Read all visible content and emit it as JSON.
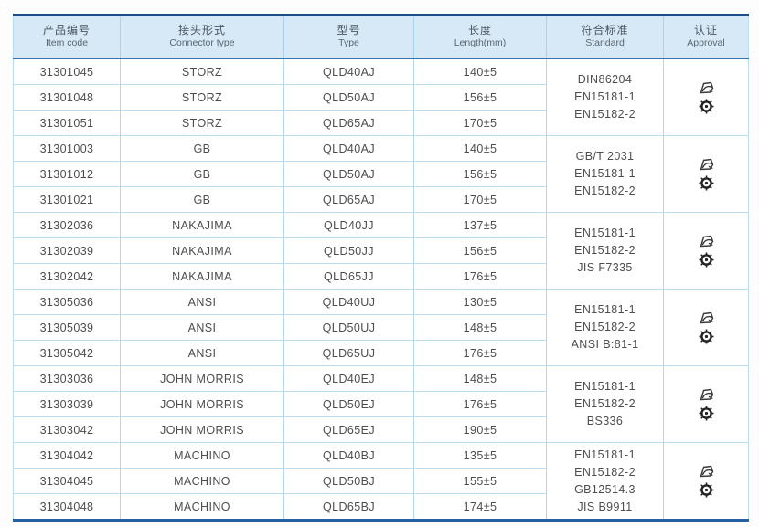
{
  "table": {
    "header": {
      "columns": [
        {
          "zh": "产品编号",
          "en": "Item code"
        },
        {
          "zh": "接头形式",
          "en": "Connector type"
        },
        {
          "zh": "型号",
          "en": "Type"
        },
        {
          "zh": "长度",
          "en": "Length(mm)"
        },
        {
          "zh": "符合标准",
          "en": "Standard"
        },
        {
          "zh": "认证",
          "en": "Approval"
        }
      ]
    },
    "groups": [
      {
        "rows": [
          {
            "item_code": "31301045",
            "connector_type": "STORZ",
            "type": "QLD40AJ",
            "length": "140±5"
          },
          {
            "item_code": "31301048",
            "connector_type": "STORZ",
            "type": "QLD50AJ",
            "length": "156±5"
          },
          {
            "item_code": "31301051",
            "connector_type": "STORZ",
            "type": "QLD65AJ",
            "length": "170±5"
          }
        ],
        "standards": [
          "DIN86204",
          "EN15181-1",
          "EN15182-2"
        ],
        "approval_icons": [
          "certificate-logo-icon",
          "wheelmark-icon"
        ]
      },
      {
        "rows": [
          {
            "item_code": "31301003",
            "connector_type": "GB",
            "type": "QLD40AJ",
            "length": "140±5"
          },
          {
            "item_code": "31301012",
            "connector_type": "GB",
            "type": "QLD50AJ",
            "length": "156±5"
          },
          {
            "item_code": "31301021",
            "connector_type": "GB",
            "type": "QLD65AJ",
            "length": "170±5"
          }
        ],
        "standards": [
          "GB/T 2031",
          "EN15181-1",
          "EN15182-2"
        ],
        "approval_icons": [
          "certificate-logo-icon",
          "wheelmark-icon"
        ]
      },
      {
        "rows": [
          {
            "item_code": "31302036",
            "connector_type": "NAKAJIMA",
            "type": "QLD40JJ",
            "length": "137±5"
          },
          {
            "item_code": "31302039",
            "connector_type": "NAKAJIMA",
            "type": "QLD50JJ",
            "length": "156±5"
          },
          {
            "item_code": "31302042",
            "connector_type": "NAKAJIMA",
            "type": "QLD65JJ",
            "length": "176±5"
          }
        ],
        "standards": [
          "EN15181-1",
          "EN15182-2",
          "JIS F7335"
        ],
        "approval_icons": [
          "certificate-logo-icon",
          "wheelmark-icon"
        ]
      },
      {
        "rows": [
          {
            "item_code": "31305036",
            "connector_type": "ANSI",
            "type": "QLD40UJ",
            "length": "130±5"
          },
          {
            "item_code": "31305039",
            "connector_type": "ANSI",
            "type": "QLD50UJ",
            "length": "148±5"
          },
          {
            "item_code": "31305042",
            "connector_type": "ANSI",
            "type": "QLD65UJ",
            "length": "176±5"
          }
        ],
        "standards": [
          "EN15181-1",
          "EN15182-2",
          "ANSI B:81-1"
        ],
        "approval_icons": [
          "certificate-logo-icon",
          "wheelmark-icon"
        ]
      },
      {
        "rows": [
          {
            "item_code": "31303036",
            "connector_type": "JOHN MORRIS",
            "type": "QLD40EJ",
            "length": "148±5"
          },
          {
            "item_code": "31303039",
            "connector_type": "JOHN MORRIS",
            "type": "QLD50EJ",
            "length": "176±5"
          },
          {
            "item_code": "31303042",
            "connector_type": "JOHN MORRIS",
            "type": "QLD65EJ",
            "length": "190±5"
          }
        ],
        "standards": [
          "EN15181-1",
          "EN15182-2",
          "BS336"
        ],
        "approval_icons": [
          "certificate-logo-icon",
          "wheelmark-icon"
        ]
      },
      {
        "rows": [
          {
            "item_code": "31304042",
            "connector_type": "MACHINO",
            "type": "QLD40BJ",
            "length": "135±5"
          },
          {
            "item_code": "31304045",
            "connector_type": "MACHINO",
            "type": "QLD50BJ",
            "length": "155±5"
          },
          {
            "item_code": "31304048",
            "connector_type": "MACHINO",
            "type": "QLD65BJ",
            "length": "174±5"
          }
        ],
        "standards": [
          "EN15181-1",
          "EN15182-2",
          "GB12514.3",
          "JIS B9911"
        ],
        "approval_icons": [
          "certificate-logo-icon",
          "wheelmark-icon"
        ]
      }
    ]
  },
  "colors": {
    "header_bg": "#d7e9f6",
    "top_border": "#1c4e80",
    "header_underline": "#2e75b6",
    "grid_line": "#b3d7ec",
    "bottom_border": "#2361a0",
    "text": "#4d4d4d"
  }
}
